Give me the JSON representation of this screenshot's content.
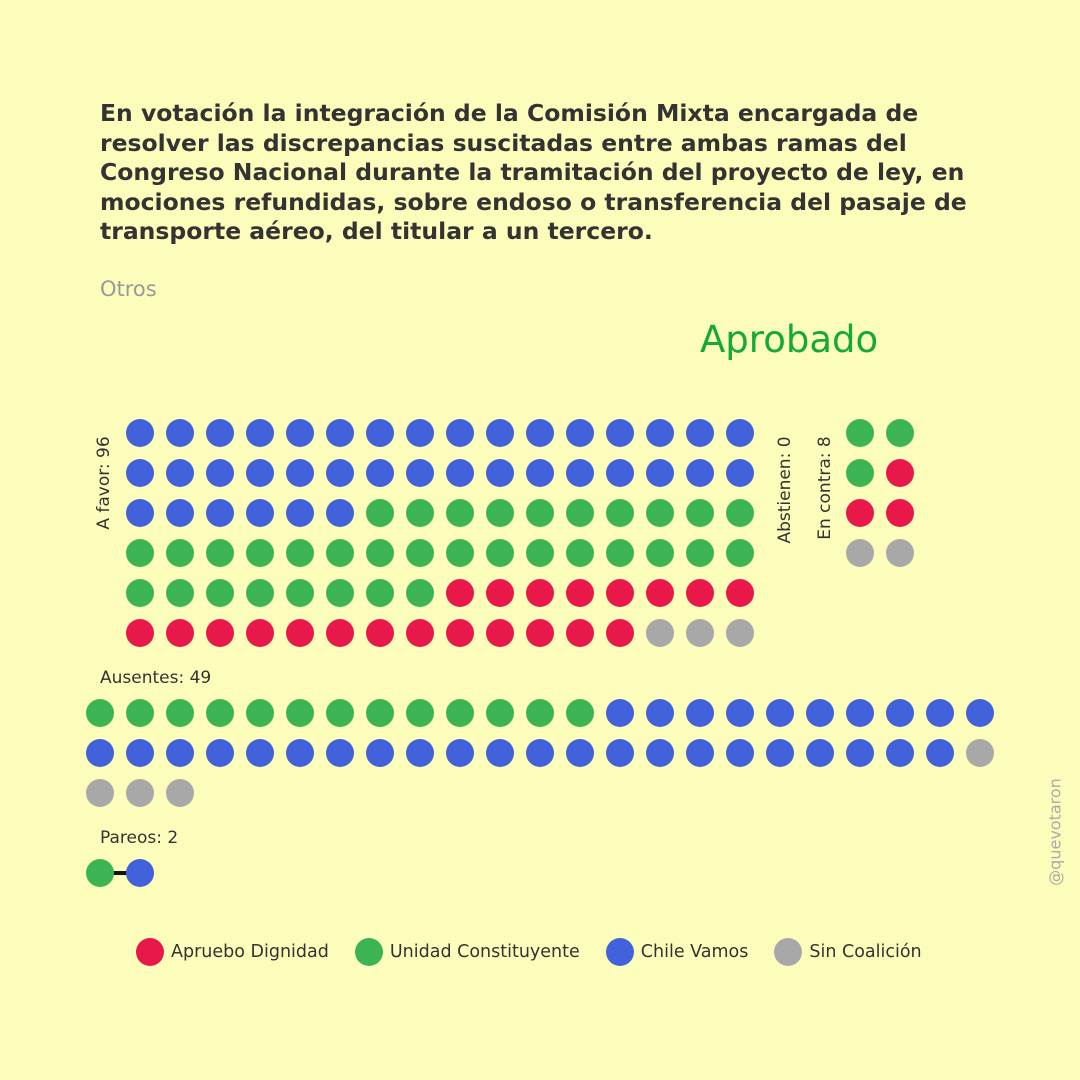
{
  "title": "En votación la integración de la Comisión Mixta encargada de resolver las discrepancias suscitadas entre ambas ramas del Congreso Nacional durante la tramitación del proyecto de ley, en mociones refundidas, sobre endoso o transferencia del pasaje de transporte aéreo, del titular a un tercero.",
  "category": "Otros",
  "result": "Aprobado",
  "watermark": "@quevotaron",
  "colors": {
    "background": "#fdfdbb",
    "result": "#16a83a",
    "apruebo_dignidad": "#e8194a",
    "unidad_constituyente": "#3cb453",
    "chile_vamos": "#4262db",
    "sin_coalicion": "#a8a8a8"
  },
  "chart_data": {
    "type": "dot-matrix",
    "groups": [
      {
        "key": "a_favor",
        "label": "A favor: 96",
        "count": 96,
        "breakdown": {
          "Chile Vamos": 38,
          "Unidad Constituyente": 34,
          "Apruebo Dignidad": 21,
          "Sin Coalición": 3
        }
      },
      {
        "key": "abstienen",
        "label": "Abstienen: 0",
        "count": 0,
        "breakdown": {}
      },
      {
        "key": "en_contra",
        "label": "En contra: 8",
        "count": 8,
        "breakdown": {
          "Unidad Constituyente": 3,
          "Apruebo Dignidad": 3,
          "Sin Coalición": 2
        }
      },
      {
        "key": "ausentes",
        "label": "Ausentes: 49",
        "count": 49,
        "breakdown": {
          "Unidad Constituyente": 13,
          "Chile Vamos": 32,
          "Sin Coalición": 4
        }
      },
      {
        "key": "pareos",
        "label": "Pareos: 2",
        "count": 2,
        "breakdown": {
          "Unidad Constituyente": 1,
          "Chile Vamos": 1
        }
      }
    ],
    "legend": [
      {
        "key": "apruebo_dignidad",
        "label": "Apruebo Dignidad"
      },
      {
        "key": "unidad_constituyente",
        "label": "Unidad Constituyente"
      },
      {
        "key": "chile_vamos",
        "label": "Chile Vamos"
      },
      {
        "key": "sin_coalicion",
        "label": "Sin Coalición"
      }
    ]
  }
}
